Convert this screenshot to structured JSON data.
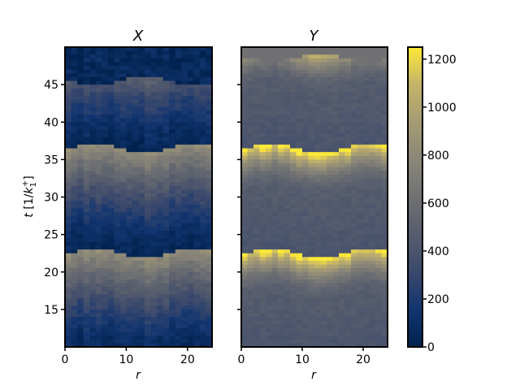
{
  "chart_data": [
    {
      "type": "heatmap",
      "panel": "X",
      "title": "X",
      "xlabel": "r",
      "ylabel": "t [1/k1+]",
      "xlim": [
        0,
        24
      ],
      "ylim": [
        10,
        50
      ],
      "xticks": [
        0,
        10,
        20
      ],
      "yticks": [
        15,
        20,
        25,
        30,
        35,
        40,
        45
      ],
      "colormap": "cividis",
      "pattern": {
        "period": 14,
        "high_bands_t": [
          22.5,
          36.5
        ],
        "low_bands_t": [
          17,
          31,
          46
        ]
      }
    },
    {
      "type": "heatmap",
      "panel": "Y",
      "title": "Y",
      "xlabel": "r",
      "xlim": [
        0,
        24
      ],
      "ylim": [
        10,
        50
      ],
      "xticks": [
        0,
        10,
        20
      ],
      "colormap": "cividis",
      "pattern": {
        "period": 14,
        "peak_bands_t": [
          22.5,
          36.5,
          50
        ]
      }
    }
  ],
  "colorbar": {
    "range": [
      0,
      1250
    ],
    "ticks": [
      0,
      200,
      400,
      600,
      800,
      1000,
      1200
    ],
    "colormap": "cividis"
  }
}
